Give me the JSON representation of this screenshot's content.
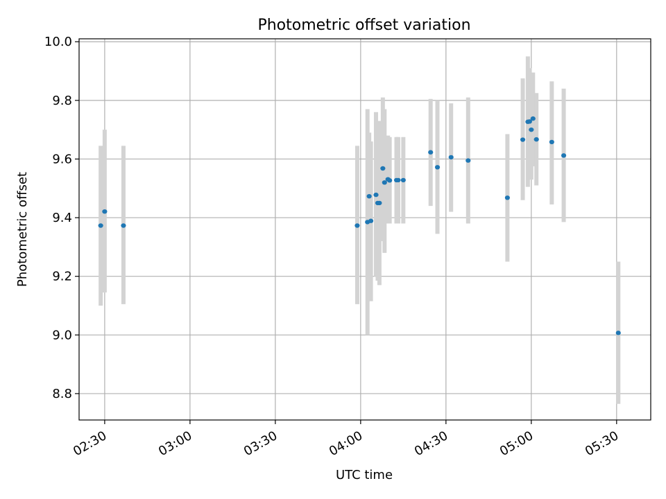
{
  "chart_data": {
    "type": "scatter",
    "title": "Photometric offset variation",
    "xlabel": "UTC time",
    "ylabel": "Photometric offset",
    "xlim": [
      "02:21",
      "05:42"
    ],
    "ylim": [
      8.71,
      10.01
    ],
    "grid": true,
    "colors": {
      "points": "#1f77b4",
      "errorbars": "#d3d3d3",
      "grid": "#b0b0b0"
    },
    "x_ticks": [
      "02:30",
      "03:00",
      "03:30",
      "04:00",
      "04:30",
      "05:00",
      "05:30"
    ],
    "y_ticks": [
      "8.8",
      "9.0",
      "9.2",
      "9.4",
      "9.6",
      "9.8",
      "10.0"
    ],
    "series": [
      {
        "points": [
          {
            "t": "02:28:36",
            "y": 9.373,
            "lo": 9.1,
            "hi": 9.645
          },
          {
            "t": "02:30:00",
            "y": 9.421,
            "lo": 9.145,
            "hi": 9.7
          },
          {
            "t": "02:36:36",
            "y": 9.373,
            "lo": 9.105,
            "hi": 9.645
          },
          {
            "t": "03:58:48",
            "y": 9.373,
            "lo": 9.105,
            "hi": 9.645
          },
          {
            "t": "04:02:24",
            "y": 9.385,
            "lo": 9.0,
            "hi": 9.77
          },
          {
            "t": "04:03:00",
            "y": 9.473,
            "lo": 9.26,
            "hi": 9.69
          },
          {
            "t": "04:03:36",
            "y": 9.389,
            "lo": 9.115,
            "hi": 9.66
          },
          {
            "t": "04:05:24",
            "y": 9.478,
            "lo": 9.2,
            "hi": 9.76
          },
          {
            "t": "04:06:00",
            "y": 9.45,
            "lo": 9.185,
            "hi": 9.705
          },
          {
            "t": "04:06:36",
            "y": 9.45,
            "lo": 9.17,
            "hi": 9.73
          },
          {
            "t": "04:07:48",
            "y": 9.568,
            "lo": 9.32,
            "hi": 9.81
          },
          {
            "t": "04:08:24",
            "y": 9.52,
            "lo": 9.28,
            "hi": 9.77
          },
          {
            "t": "04:09:36",
            "y": 9.531,
            "lo": 9.38,
            "hi": 9.68
          },
          {
            "t": "04:10:12",
            "y": 9.527,
            "lo": 9.38,
            "hi": 9.675
          },
          {
            "t": "04:12:36",
            "y": 9.528,
            "lo": 9.38,
            "hi": 9.675
          },
          {
            "t": "04:13:12",
            "y": 9.528,
            "lo": 9.38,
            "hi": 9.675
          },
          {
            "t": "04:15:00",
            "y": 9.528,
            "lo": 9.38,
            "hi": 9.675
          },
          {
            "t": "04:24:36",
            "y": 9.623,
            "lo": 9.44,
            "hi": 9.805
          },
          {
            "t": "04:27:00",
            "y": 9.572,
            "lo": 9.345,
            "hi": 9.8
          },
          {
            "t": "04:31:48",
            "y": 9.606,
            "lo": 9.42,
            "hi": 9.79
          },
          {
            "t": "04:37:48",
            "y": 9.595,
            "lo": 9.38,
            "hi": 9.81
          },
          {
            "t": "04:51:36",
            "y": 9.468,
            "lo": 9.25,
            "hi": 9.685
          },
          {
            "t": "04:57:00",
            "y": 9.666,
            "lo": 9.46,
            "hi": 9.875
          },
          {
            "t": "04:58:48",
            "y": 9.727,
            "lo": 9.505,
            "hi": 9.95
          },
          {
            "t": "04:59:24",
            "y": 9.728,
            "lo": 9.53,
            "hi": 9.91
          },
          {
            "t": "05:00:00",
            "y": 9.7,
            "lo": 9.53,
            "hi": 9.865
          },
          {
            "t": "05:00:36",
            "y": 9.738,
            "lo": 9.575,
            "hi": 9.895
          },
          {
            "t": "05:01:48",
            "y": 9.667,
            "lo": 9.51,
            "hi": 9.825
          },
          {
            "t": "05:07:12",
            "y": 9.658,
            "lo": 9.445,
            "hi": 9.865
          },
          {
            "t": "05:11:24",
            "y": 9.612,
            "lo": 9.385,
            "hi": 9.84
          },
          {
            "t": "05:30:36",
            "y": 9.007,
            "lo": 8.765,
            "hi": 9.25
          }
        ]
      }
    ]
  }
}
